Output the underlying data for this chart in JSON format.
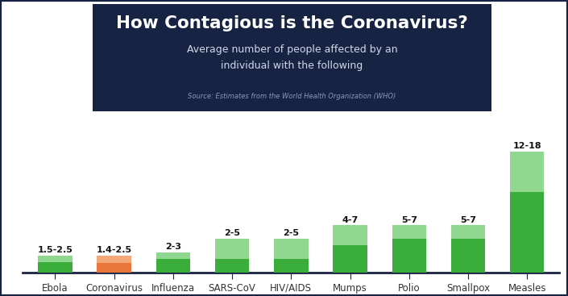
{
  "categories": [
    "Ebola",
    "Coronavirus",
    "Influenza",
    "SARS-CoV",
    "HIV/AIDS",
    "Mumps",
    "Polio",
    "Smallpox",
    "Measles"
  ],
  "low_values": [
    1.5,
    1.4,
    2.0,
    2.0,
    2.0,
    4.0,
    5.0,
    5.0,
    12.0
  ],
  "high_values": [
    2.5,
    2.5,
    3.0,
    5.0,
    5.0,
    7.0,
    7.0,
    7.0,
    18.0
  ],
  "labels": [
    "1.5-2.5",
    "1.4-2.5",
    "2-3",
    "2-5",
    "2-5",
    "4-7",
    "5-7",
    "5-7",
    "12-18"
  ],
  "coronavirus_dark": "#e8753a",
  "coronavirus_light": "#f4a87a",
  "green_dark": "#3aad3a",
  "green_light": "#90d890",
  "title": "How Contagious is the Coronavirus?",
  "subtitle": "Average number of people affected by an\nindividual with the following",
  "source": "Source: Estimates from the World Health Organization (WHO)",
  "bg_color": "#ffffff",
  "header_bg": "#172343",
  "title_color": "#ffffff",
  "subtitle_color": "#d0d8e8",
  "source_color": "#8899bb",
  "label_color": "#111111",
  "axis_color": "#333333",
  "border_color": "#172343"
}
